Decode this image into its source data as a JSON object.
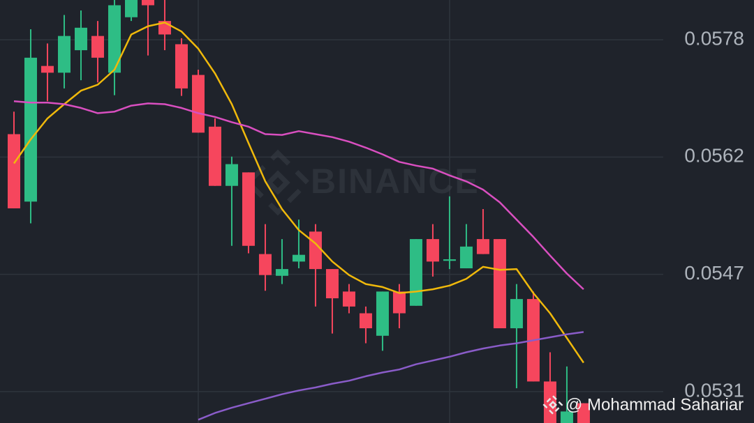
{
  "chart_data": {
    "type": "candlestick",
    "watermark": "BINANCE",
    "credit": "@ Mohammad Sahariar",
    "up_color": "#2ebd85",
    "down_color": "#f6465d",
    "grid": true,
    "xlim": [
      -0.833,
      44.17
    ],
    "ylim": [
      0.052696,
      0.05834
    ],
    "yticks": [
      {
        "value": 0.05781,
        "label": "0.0578"
      },
      {
        "value": 0.056245,
        "label": "0.0562"
      },
      {
        "value": 0.05468,
        "label": "0.0547"
      },
      {
        "value": 0.053115,
        "label": "0.0531"
      }
    ],
    "open": [
      0.05655,
      0.05565,
      0.05746,
      0.05737,
      0.05767,
      0.05786,
      0.05737,
      0.05811,
      0.05834,
      0.05806,
      0.05775,
      0.05734,
      0.05665,
      0.05586,
      0.05604,
      0.05495,
      0.05466,
      0.05485,
      0.05525,
      0.05475,
      0.05445,
      0.05416,
      0.05386,
      0.05445,
      0.05426,
      0.05515,
      0.05486,
      0.05476,
      0.05515,
      0.05515,
      0.05396,
      0.05435,
      0.05325,
      0.05269,
      0.05296
    ],
    "high": [
      0.05685,
      0.05795,
      0.05776,
      0.05814,
      0.0582,
      0.05806,
      0.05834,
      0.05834,
      0.05834,
      0.05834,
      0.05783,
      0.05741,
      0.05676,
      0.05625,
      0.05604,
      0.05535,
      0.05515,
      0.05541,
      0.05535,
      0.05475,
      0.05455,
      0.05425,
      0.05445,
      0.05455,
      0.05515,
      0.05535,
      0.05572,
      0.05535,
      0.05555,
      0.05515,
      0.05455,
      0.05445,
      0.05364,
      0.05345,
      0.05296
    ],
    "low": [
      0.05556,
      0.05536,
      0.05699,
      0.05716,
      0.05727,
      0.05724,
      0.05707,
      0.05806,
      0.0576,
      0.05767,
      0.05706,
      0.05657,
      0.05586,
      0.05506,
      0.05496,
      0.05446,
      0.05455,
      0.05476,
      0.05425,
      0.05389,
      0.05416,
      0.05376,
      0.05366,
      0.05396,
      0.05426,
      0.05465,
      0.05475,
      0.05476,
      0.05495,
      0.05396,
      0.05316,
      0.05325,
      0.05269,
      0.05269,
      0.05269
    ],
    "close": [
      0.05556,
      0.05757,
      0.05737,
      0.05786,
      0.05797,
      0.05757,
      0.05827,
      0.05834,
      0.05827,
      0.05788,
      0.05716,
      0.05657,
      0.05586,
      0.05615,
      0.05506,
      0.05467,
      0.05475,
      0.05494,
      0.05475,
      0.05436,
      0.05425,
      0.05396,
      0.05445,
      0.05416,
      0.05515,
      0.05485,
      0.05488,
      0.05505,
      0.05495,
      0.05396,
      0.05435,
      0.05325,
      0.05269,
      0.05285,
      0.05269
    ],
    "series": [
      {
        "color": "#f0b90b",
        "values": [
          0.05616,
          0.05648,
          0.05676,
          0.05695,
          0.05713,
          0.05721,
          0.05741,
          0.05788,
          0.05799,
          0.05804,
          0.05792,
          0.05769,
          0.05736,
          0.05695,
          0.05643,
          0.05592,
          0.05555,
          0.05527,
          0.05509,
          0.05485,
          0.05467,
          0.05455,
          0.05451,
          0.05443,
          0.05445,
          0.05448,
          0.05453,
          0.05462,
          0.05478,
          0.05474,
          0.05475,
          0.05443,
          0.05416,
          0.05383,
          0.0535
        ]
      },
      {
        "color": "#d94fc0",
        "values": [
          0.05699,
          0.05697,
          0.05697,
          0.05695,
          0.0569,
          0.05683,
          0.05685,
          0.05693,
          0.05696,
          0.05695,
          0.0569,
          0.05683,
          0.05678,
          0.05671,
          0.05665,
          0.05655,
          0.05654,
          0.05659,
          0.05655,
          0.05651,
          0.05645,
          0.05637,
          0.05628,
          0.05618,
          0.05613,
          0.05609,
          0.056,
          0.05592,
          0.05581,
          0.05564,
          0.05541,
          0.05518,
          0.05493,
          0.05469,
          0.05448
        ]
      },
      {
        "color": "#8a5cc9",
        "values": [
          null,
          null,
          null,
          null,
          null,
          null,
          null,
          null,
          null,
          null,
          null,
          0.05274,
          0.05283,
          0.0529,
          0.05296,
          0.05302,
          0.05308,
          0.05313,
          0.05317,
          0.05322,
          0.05326,
          0.05332,
          0.05337,
          0.05341,
          0.05348,
          0.05353,
          0.05358,
          0.05364,
          0.05369,
          0.05373,
          0.05376,
          0.0538,
          0.05384,
          0.05388,
          0.05391
        ]
      }
    ]
  }
}
